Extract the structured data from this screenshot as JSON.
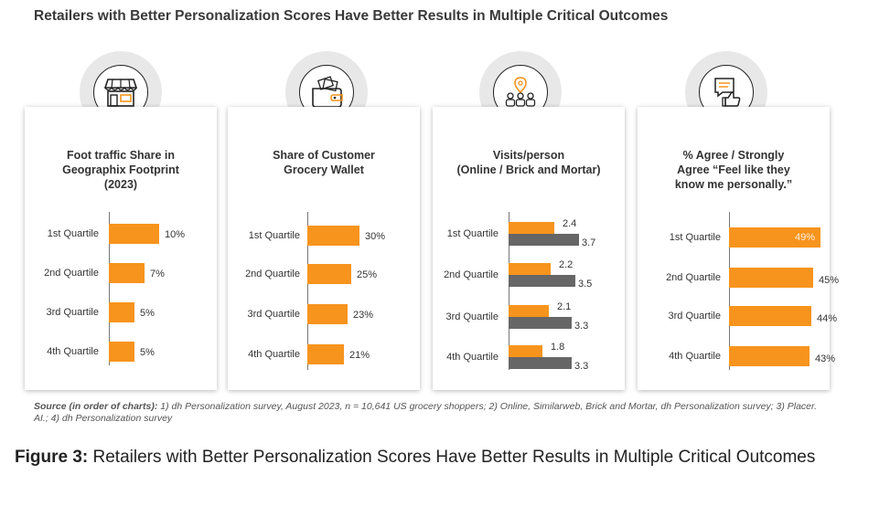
{
  "header": {
    "title": "Retailers with Better Personalization Scores Have Better Results in Multiple Critical Outcomes"
  },
  "colors": {
    "orange": "#f7941d",
    "gray": "#666666"
  },
  "panels": [
    {
      "icon": "storefront-icon",
      "title_lines": [
        "Foot traffic Share in",
        "Geographix Footprint",
        "(2023)"
      ]
    },
    {
      "icon": "wallet-icon",
      "title_lines": [
        "Share of Customer",
        "Grocery Wallet"
      ]
    },
    {
      "icon": "shoppers-location-icon",
      "title_lines": [
        "Visits/person",
        "(Online / Brick and Mortar)"
      ]
    },
    {
      "icon": "chat-thumbs-up-icon",
      "title_lines": [
        "% Agree / Strongly",
        "Agree “Feel like they",
        "know me personally.”"
      ]
    }
  ],
  "chart_data": [
    {
      "type": "bar",
      "orientation": "horizontal",
      "title": "Foot traffic Share in Geographix Footprint (2023)",
      "categories": [
        "1st Quartile",
        "2nd Quartile",
        "3rd Quartile",
        "4th Quartile"
      ],
      "series": [
        {
          "values": [
            10,
            7,
            5,
            5
          ],
          "labels": [
            "10%",
            "7%",
            "5%",
            "5%"
          ],
          "color": "#f7941d"
        }
      ]
    },
    {
      "type": "bar",
      "orientation": "horizontal",
      "title": "Share of Customer Grocery Wallet",
      "categories": [
        "1st Quartile",
        "2nd Quartile",
        "3rd Quartile",
        "4th Quartile"
      ],
      "series": [
        {
          "values": [
            30,
            25,
            23,
            21
          ],
          "labels": [
            "30%",
            "25%",
            "23%",
            "21%"
          ],
          "color": "#f7941d"
        }
      ]
    },
    {
      "type": "bar",
      "orientation": "horizontal",
      "title": "Visits/person (Online / Brick and Mortar)",
      "categories": [
        "1st Quartile",
        "2nd Quartile",
        "3rd Quartile",
        "4th Quartile"
      ],
      "series": [
        {
          "values": [
            2.4,
            2.2,
            2.1,
            1.8
          ],
          "labels": [
            "2.4",
            "2.2",
            "2.1",
            "1.8"
          ],
          "color": "#f7941d"
        },
        {
          "values": [
            3.7,
            3.5,
            3.3,
            3.3
          ],
          "labels": [
            "3.7",
            "3.5",
            "3.3",
            "3.3"
          ],
          "color": "#666666"
        }
      ]
    },
    {
      "type": "bar",
      "orientation": "horizontal",
      "title": "% Agree / Strongly Agree “Feel like they know me personally.”",
      "categories": [
        "1st Quartile",
        "2nd Quartile",
        "3rd Quartile",
        "4th Quartile"
      ],
      "series": [
        {
          "values": [
            49,
            45,
            44,
            43
          ],
          "labels": [
            "49%",
            "45%",
            "44%",
            "43%"
          ],
          "color": "#f7941d"
        }
      ]
    }
  ],
  "source": {
    "label": "Source (in order of charts):",
    "text": " 1) dh Personalization survey, August 2023, n = 10,641 US grocery shoppers; 2) Online, Similarweb, Brick and Mortar, dh Personalization survey; 3) Placer. AI.; 4) dh Personalization survey"
  },
  "caption": {
    "label": "Figure 3:",
    "text": " Retailers with Better Personalization Scores Have Better Results in Multiple Critical Outcomes"
  }
}
